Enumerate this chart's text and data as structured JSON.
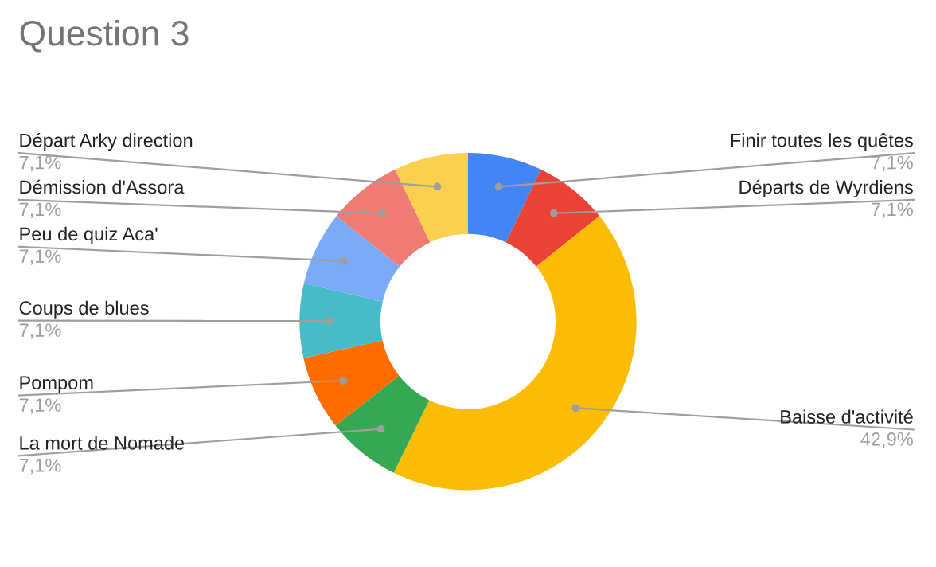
{
  "chart_data": {
    "type": "donut",
    "title": "Question 3",
    "categories": [
      "Finir toutes les quêtes",
      "Départs de Wyrdiens",
      "Baisse d'activité",
      "La mort de Nomade",
      "Pompom",
      "Coups de blues",
      "Peu de quiz Aca'",
      "Démission d'Assora",
      "Départ Arky direction"
    ],
    "values": [
      7.1,
      7.1,
      42.9,
      7.1,
      7.1,
      7.1,
      7.1,
      7.1,
      7.1
    ],
    "value_labels": [
      "7,1%",
      "7,1%",
      "42,9%",
      "7,1%",
      "7,1%",
      "7,1%",
      "7,1%",
      "7,1%",
      "7,1%"
    ],
    "colors": [
      "#4285f4",
      "#ea4335",
      "#fbbc04",
      "#34a853",
      "#ff6d01",
      "#46bdc6",
      "#7baaf7",
      "#f07b72",
      "#fcd04f"
    ],
    "legend": false
  }
}
